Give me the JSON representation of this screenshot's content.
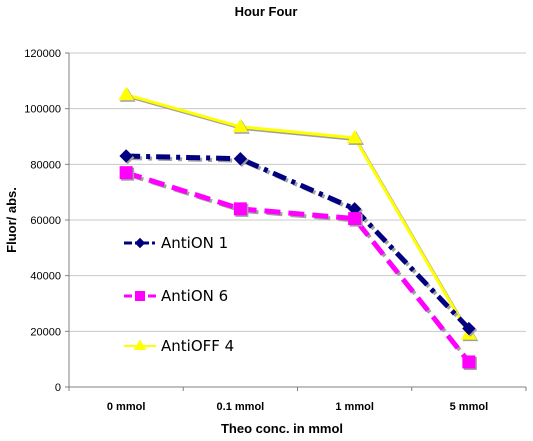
{
  "chart_data": {
    "type": "line",
    "title": "Hour Four",
    "xlabel": "Theo conc. in mmol",
    "ylabel": "Fluor/ abs.",
    "categories": [
      "0 mmol",
      "0.1 mmol",
      "1 mmol",
      "5 mmol"
    ],
    "ylim": [
      0,
      120000
    ],
    "yticks": [
      0,
      20000,
      40000,
      60000,
      80000,
      100000,
      120000
    ],
    "grid": "horizontal",
    "legend_position": "left-inside",
    "series": [
      {
        "name": "AntiON 1",
        "values": [
          83000,
          82000,
          64000,
          21000
        ],
        "color": "#000080",
        "marker": "diamond",
        "line_style": "dash-dot"
      },
      {
        "name": "AntiON 6",
        "values": [
          77000,
          64000,
          60500,
          9000
        ],
        "color": "#ff00ff",
        "marker": "square",
        "line_style": "dashed"
      },
      {
        "name": "AntiOFF 4",
        "values": [
          105000,
          93500,
          89500,
          19000
        ],
        "color": "#ffff00",
        "marker": "triangle",
        "line_style": "solid"
      }
    ]
  }
}
